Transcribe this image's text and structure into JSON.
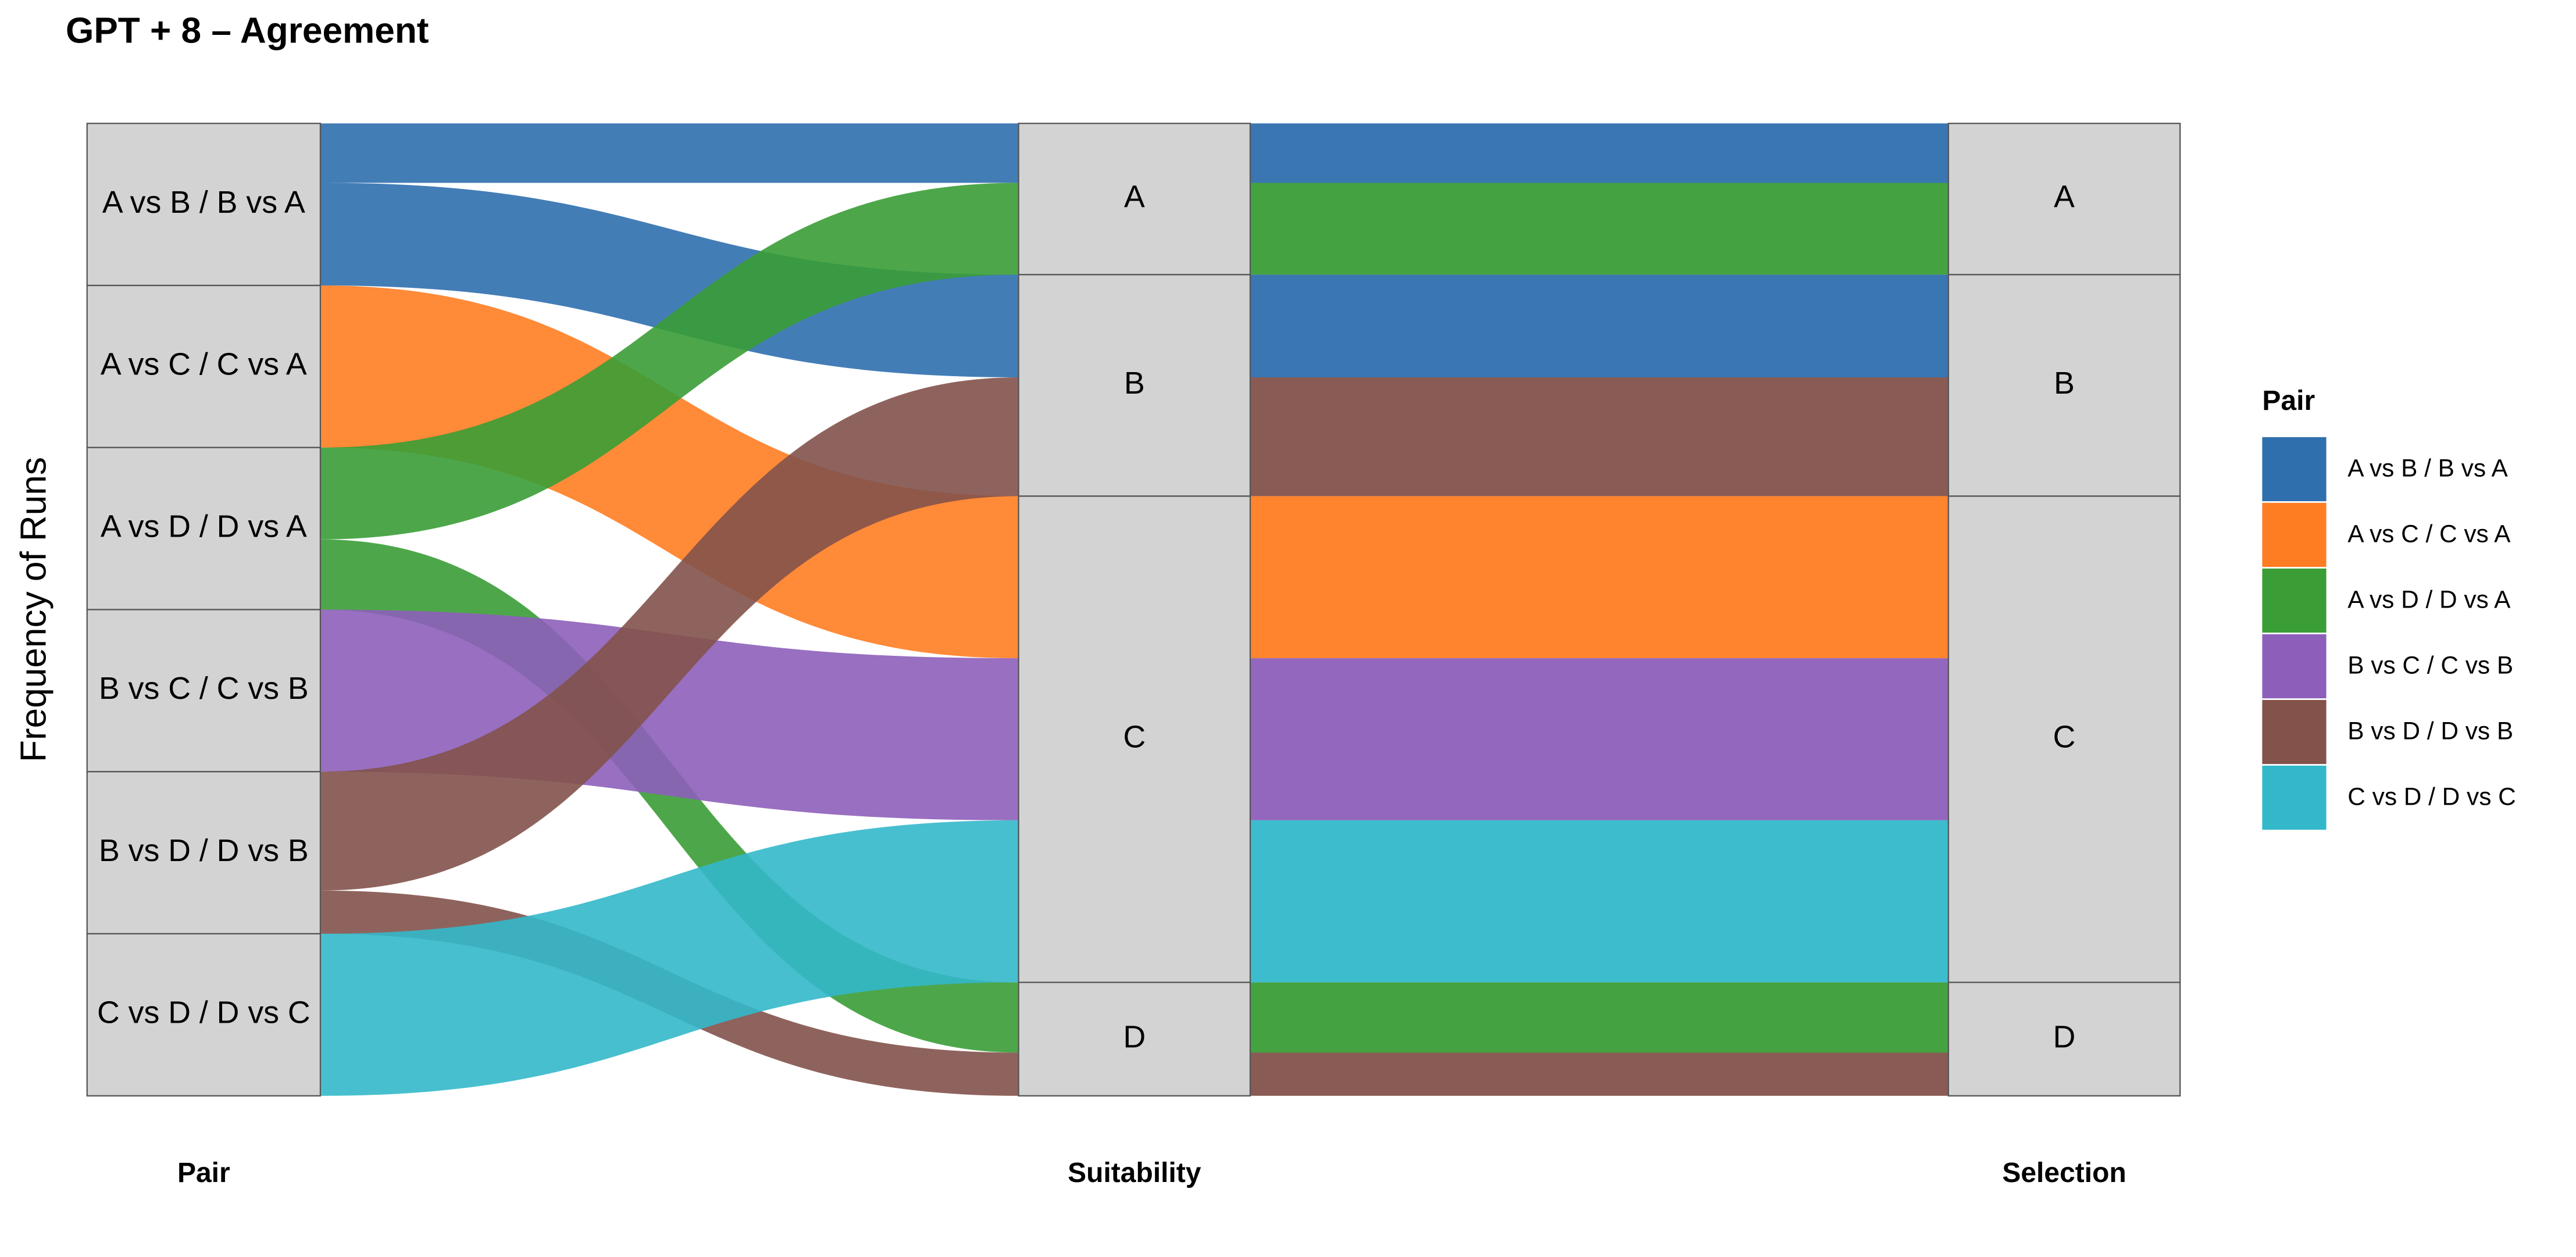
{
  "chart_data": {
    "type": "alluvial",
    "title": "GPT + 8 – Agreement",
    "y_label": "Frequency of Runs",
    "axes": [
      "Pair",
      "Suitability",
      "Selection"
    ],
    "strata": [
      "A",
      "B",
      "C",
      "D"
    ],
    "legend_title": "Pair",
    "series": [
      {
        "name": "A vs B / B vs A",
        "color": "#2f6fae",
        "suitability": [
          "A",
          "B"
        ],
        "selection": [
          "A",
          "B"
        ],
        "values": [
          11,
          19
        ]
      },
      {
        "name": "A vs C / C vs A",
        "color": "#ff7d22",
        "suitability": [
          "C"
        ],
        "selection": [
          "C"
        ],
        "values": [
          30
        ]
      },
      {
        "name": "A vs D / D vs A",
        "color": "#3a9d36",
        "suitability": [
          "A",
          "D"
        ],
        "selection": [
          "A",
          "D"
        ],
        "values": [
          17,
          13
        ]
      },
      {
        "name": "B vs C / C vs B",
        "color": "#8d5fba",
        "suitability": [
          "C"
        ],
        "selection": [
          "C"
        ],
        "values": [
          30
        ]
      },
      {
        "name": "B vs D / D vs B",
        "color": "#83524b",
        "suitability": [
          "B",
          "D"
        ],
        "selection": [
          "B",
          "D"
        ],
        "values": [
          22,
          8
        ]
      },
      {
        "name": "C vs D / D vs C",
        "color": "#33b8ca",
        "suitability": [
          "C"
        ],
        "selection": [
          "C"
        ],
        "values": [
          30
        ]
      }
    ]
  }
}
